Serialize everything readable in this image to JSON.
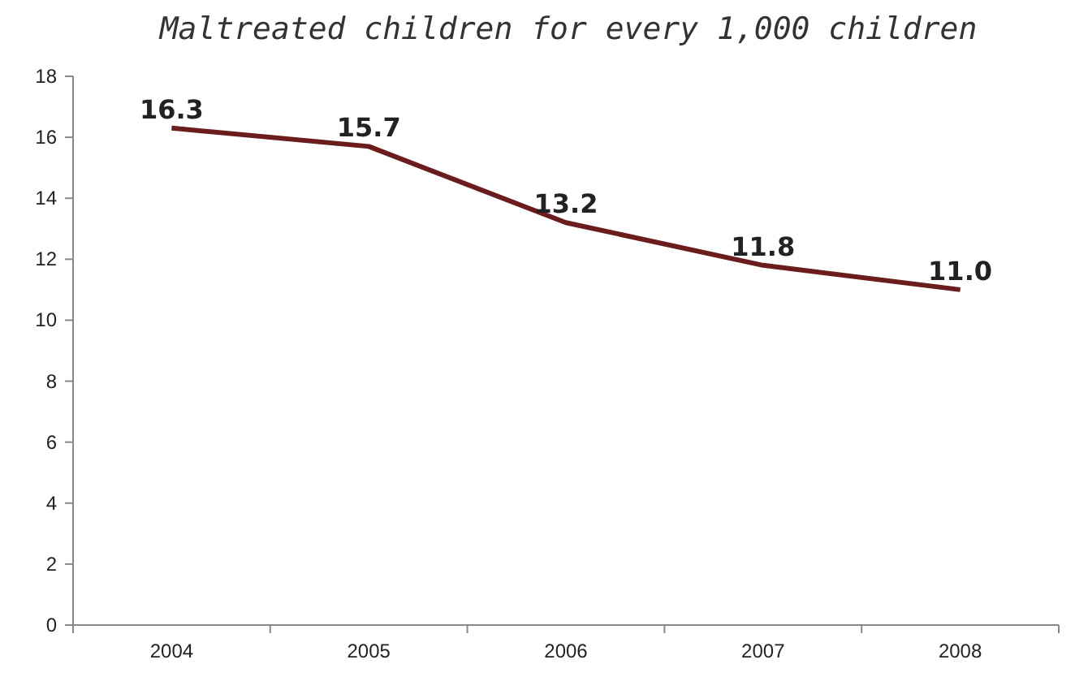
{
  "chart_data": {
    "type": "line",
    "title": "Maltreated children for every 1,000 children",
    "categories": [
      "2004",
      "2005",
      "2006",
      "2007",
      "2008"
    ],
    "series": [
      {
        "color": "#6b1c1c",
        "values": [
          16.3,
          15.7,
          13.2,
          11.8,
          11.0
        ],
        "value_labels": [
          "16.3",
          "15.7",
          "13.2",
          "11.8",
          "11.0"
        ]
      }
    ],
    "ylim": [
      0,
      18
    ],
    "yticks": [
      0,
      2,
      4,
      6,
      8,
      10,
      12,
      14,
      16,
      18
    ],
    "grid": false,
    "marker": "none",
    "line_style": "solid"
  }
}
